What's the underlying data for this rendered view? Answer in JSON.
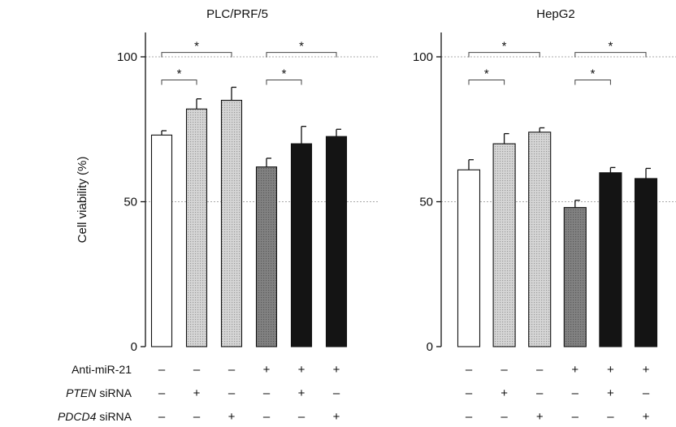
{
  "chart_data": [
    {
      "type": "bar",
      "title": "PLC/PRF/5",
      "ylabel": "Cell viability (%)",
      "ylim": [
        0,
        100
      ],
      "yticks": [
        "0",
        "50",
        "100"
      ],
      "reference_lines": [
        50,
        100
      ],
      "grid": false,
      "values": [
        73,
        82,
        85,
        62,
        70,
        72.5
      ],
      "errors": [
        1.5,
        3.5,
        4.5,
        3,
        6,
        2.5
      ],
      "fills": [
        "white",
        "light-dotted",
        "light-dotted",
        "gray",
        "black",
        "black"
      ],
      "significance": [
        {
          "from": 1,
          "to": 2,
          "label": "*",
          "y": 92
        },
        {
          "from": 1,
          "to": 3,
          "label": "*",
          "y": 101.5
        },
        {
          "from": 4,
          "to": 5,
          "label": "*",
          "y": 92
        },
        {
          "from": 4,
          "to": 6,
          "label": "*",
          "y": 101.5
        }
      ]
    },
    {
      "type": "bar",
      "title": "HepG2",
      "ylabel": "",
      "ylim": [
        0,
        100
      ],
      "yticks": [
        "0",
        "50",
        "100"
      ],
      "reference_lines": [
        50,
        100
      ],
      "grid": false,
      "values": [
        61,
        70,
        74,
        48,
        60,
        58
      ],
      "errors": [
        3.5,
        3.5,
        1.5,
        2.5,
        1.8,
        3.5
      ],
      "fills": [
        "white",
        "light-dotted",
        "light-dotted",
        "gray",
        "black",
        "black"
      ],
      "significance": [
        {
          "from": 1,
          "to": 2,
          "label": "*",
          "y": 92
        },
        {
          "from": 1,
          "to": 3,
          "label": "*",
          "y": 101.5
        },
        {
          "from": 4,
          "to": 5,
          "label": "*",
          "y": 92
        },
        {
          "from": 4,
          "to": 6,
          "label": "*",
          "y": 101.5
        }
      ]
    }
  ],
  "conditions": {
    "rows": [
      {
        "label": "Anti-miR-21",
        "label_italic": "",
        "label_rest": "",
        "signs": [
          "–",
          "–",
          "–",
          "+",
          "+",
          "+"
        ]
      },
      {
        "label": "",
        "label_italic": "PTEN",
        "label_rest": " siRNA",
        "signs": [
          "–",
          "+",
          "–",
          "–",
          "+",
          "–"
        ]
      },
      {
        "label": "",
        "label_italic": "PDCD4",
        "label_rest": " siRNA",
        "signs": [
          "–",
          "–",
          "+",
          "–",
          "–",
          "+"
        ]
      }
    ]
  },
  "colors": {
    "white": "#ffffff",
    "light-dotted": "#cfcfcf",
    "light-dot": "#9a9a9a",
    "gray": "#7d7d7d",
    "gray-dot": "#5a5a5a",
    "black": "#141414",
    "axis": "#111111",
    "refline": "#aaaaaa"
  }
}
